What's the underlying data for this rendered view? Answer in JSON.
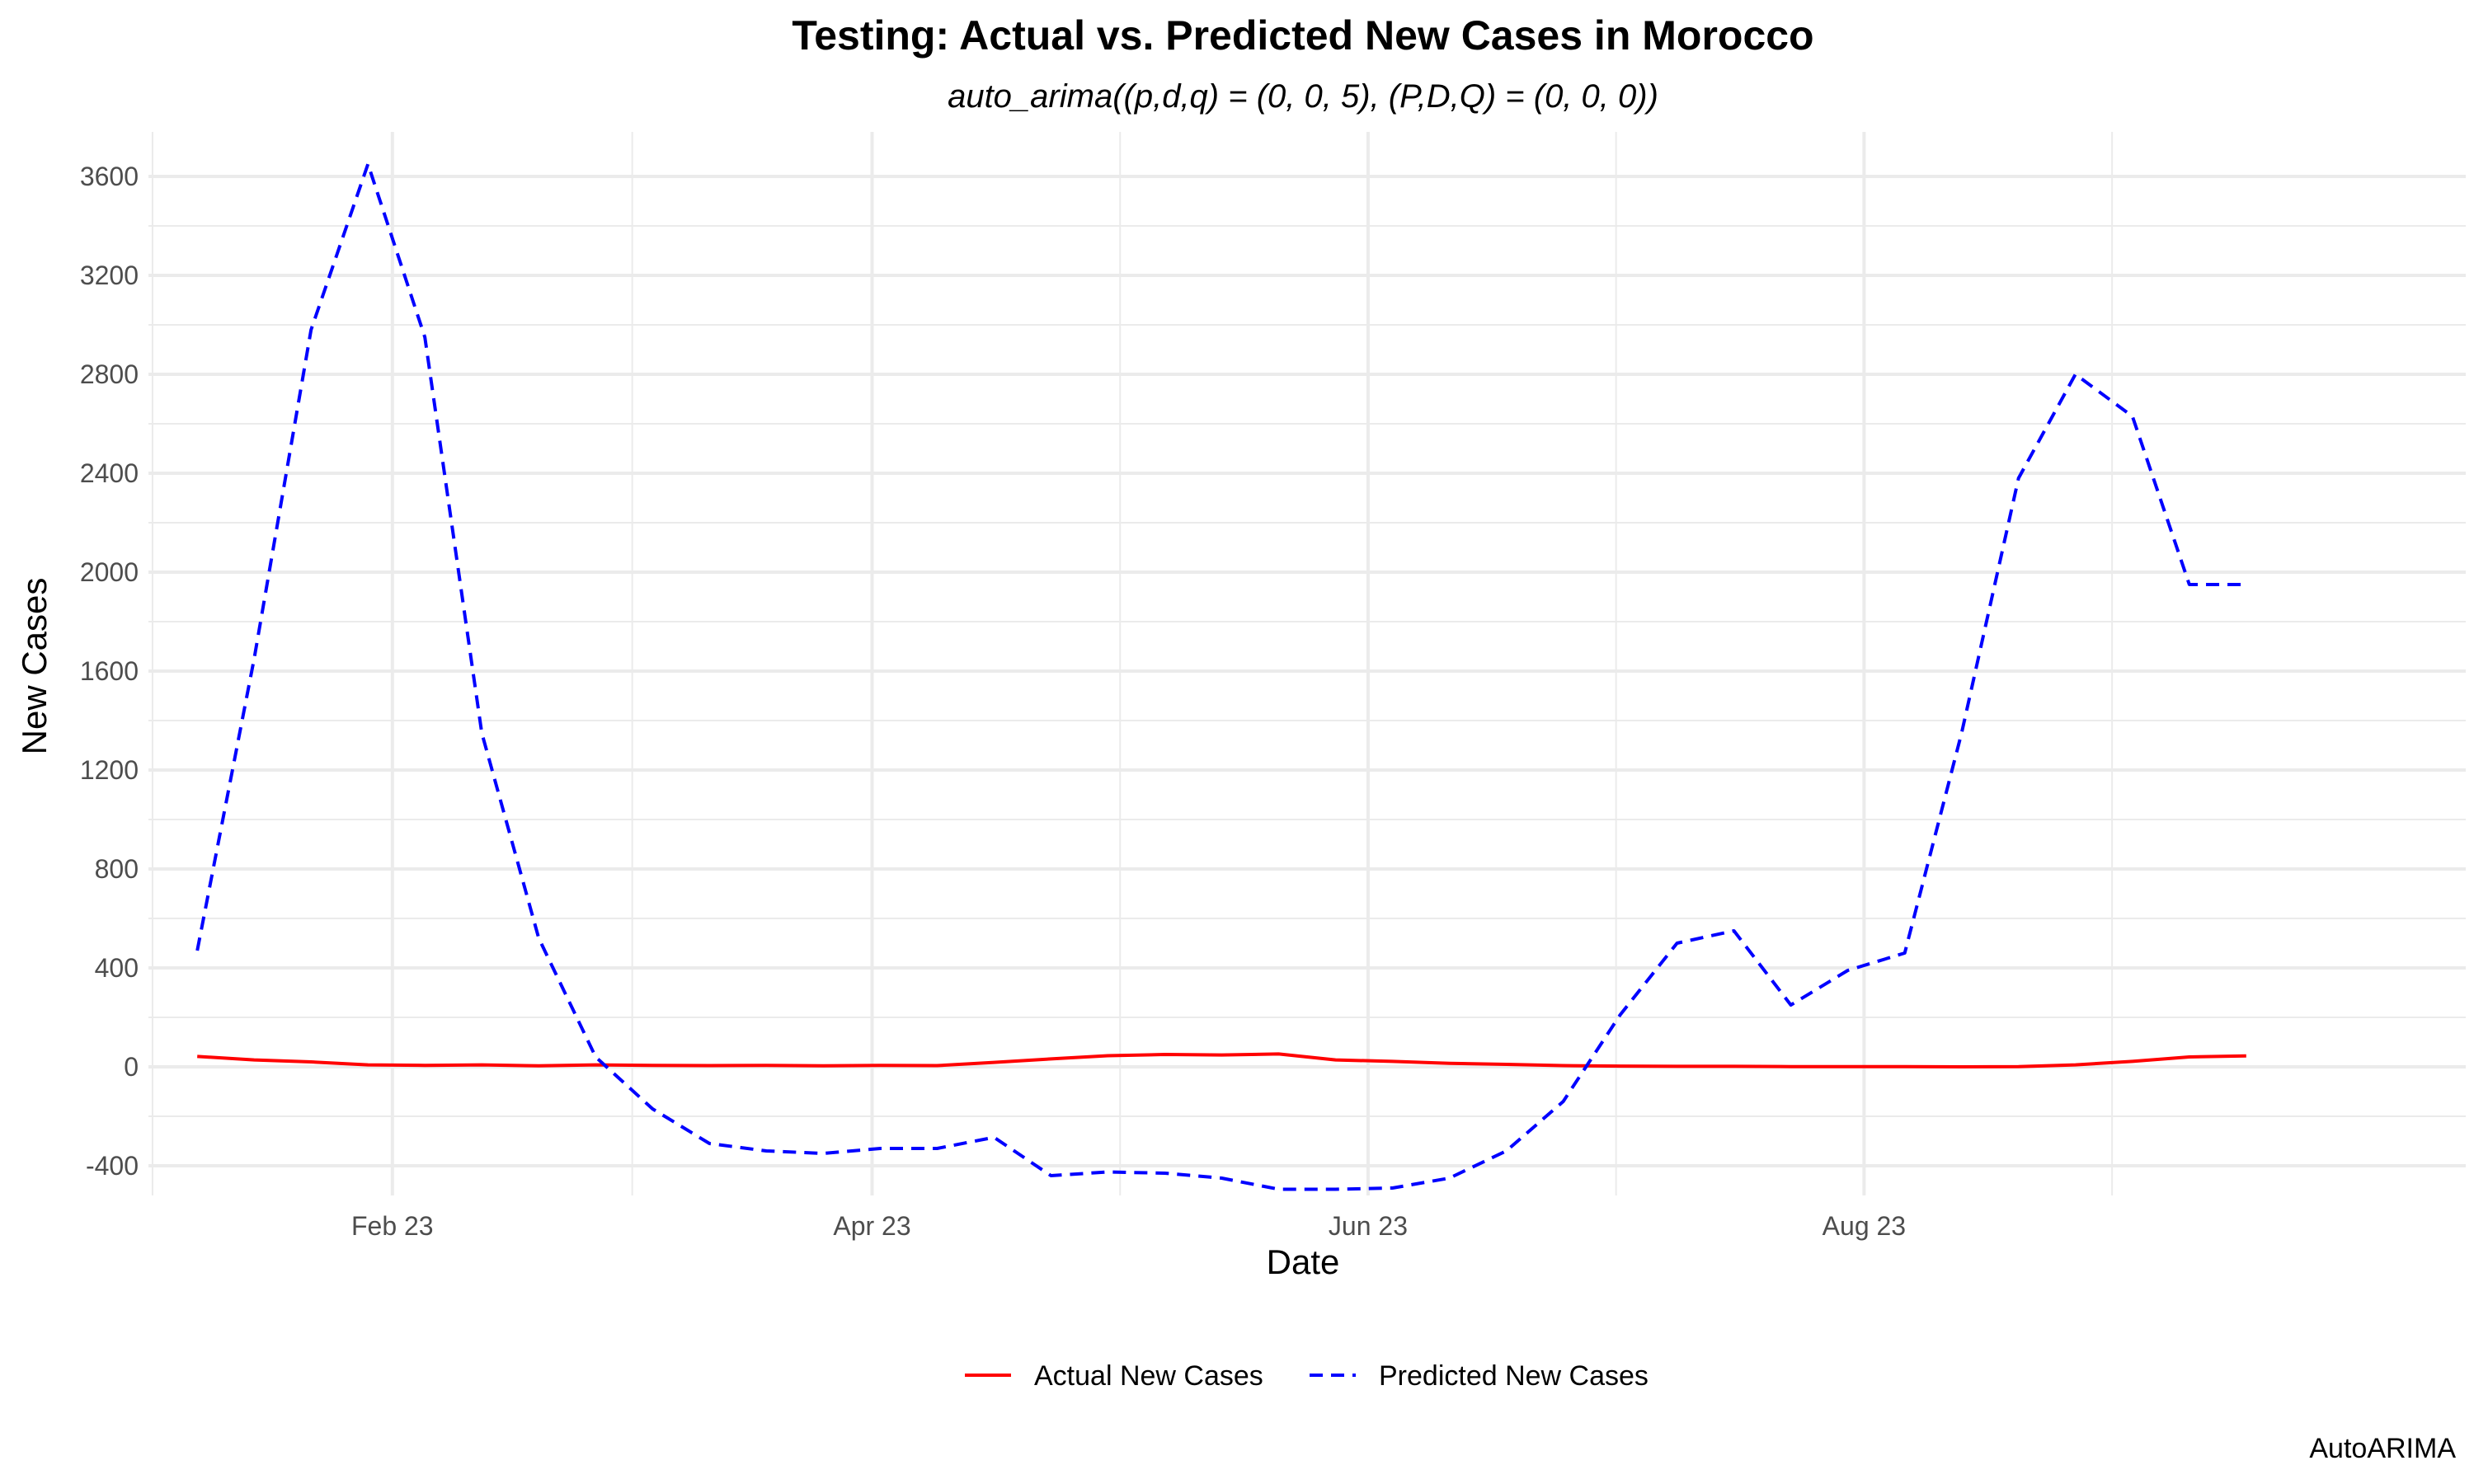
{
  "chart_data": {
    "type": "line",
    "title": "Testing: Actual vs. Predicted New Cases in Morocco",
    "subtitle": "auto_arima((p,d,q) = (0, 0, 5), (P,D,Q) = (0, 0, 0))",
    "xlabel": "Date",
    "ylabel": "New Cases",
    "caption": "AutoARIMA",
    "x_type": "date",
    "x_ticks": [
      {
        "date": "2023-02-01",
        "label": "Feb 23"
      },
      {
        "date": "2023-04-01",
        "label": "Apr 23"
      },
      {
        "date": "2023-06-01",
        "label": "Jun 23"
      },
      {
        "date": "2023-08-01",
        "label": "Aug 23"
      }
    ],
    "xlim": [
      "2023-01-02",
      "2023-10-14"
    ],
    "ylim": [
      -520,
      3780
    ],
    "y_ticks": [
      -400,
      0,
      400,
      800,
      1200,
      1600,
      2000,
      2400,
      2800,
      3200,
      3600
    ],
    "grid": true,
    "legend_position": "bottom",
    "series": [
      {
        "name": "Actual New Cases",
        "color": "#ff0000",
        "style": "solid",
        "x": [
          "2023-01-08",
          "2023-01-15",
          "2023-01-22",
          "2023-01-29",
          "2023-02-05",
          "2023-02-12",
          "2023-02-19",
          "2023-02-26",
          "2023-03-05",
          "2023-03-12",
          "2023-03-19",
          "2023-03-26",
          "2023-04-02",
          "2023-04-09",
          "2023-04-16",
          "2023-04-23",
          "2023-04-30",
          "2023-05-07",
          "2023-05-14",
          "2023-05-21",
          "2023-05-28",
          "2023-06-04",
          "2023-06-11",
          "2023-06-18",
          "2023-06-25",
          "2023-07-02",
          "2023-07-09",
          "2023-07-16",
          "2023-07-23",
          "2023-07-30",
          "2023-08-06",
          "2023-08-13",
          "2023-08-20",
          "2023-08-27",
          "2023-09-03",
          "2023-09-10",
          "2023-09-17"
        ],
        "values": [
          42,
          28,
          20,
          8,
          6,
          8,
          4,
          8,
          6,
          5,
          6,
          4,
          6,
          5,
          18,
          32,
          45,
          50,
          48,
          52,
          28,
          22,
          14,
          10,
          5,
          3,
          2,
          2,
          1,
          1,
          1,
          0,
          1,
          8,
          22,
          40,
          44
        ]
      },
      {
        "name": "Predicted New Cases",
        "color": "#0000ff",
        "style": "dashed",
        "x": [
          "2023-01-08",
          "2023-01-15",
          "2023-01-22",
          "2023-01-29",
          "2023-02-05",
          "2023-02-12",
          "2023-02-19",
          "2023-02-26",
          "2023-03-05",
          "2023-03-12",
          "2023-03-19",
          "2023-03-26",
          "2023-04-02",
          "2023-04-09",
          "2023-04-16",
          "2023-04-23",
          "2023-04-30",
          "2023-05-07",
          "2023-05-14",
          "2023-05-21",
          "2023-05-28",
          "2023-06-04",
          "2023-06-11",
          "2023-06-18",
          "2023-06-25",
          "2023-07-02",
          "2023-07-09",
          "2023-07-16",
          "2023-07-23",
          "2023-07-30",
          "2023-08-06",
          "2023-08-13",
          "2023-08-20",
          "2023-08-27",
          "2023-09-03",
          "2023-09-10",
          "2023-09-17"
        ],
        "values": [
          470,
          1650,
          2980,
          3650,
          2950,
          1350,
          520,
          40,
          -170,
          -310,
          -340,
          -350,
          -330,
          -330,
          -285,
          -440,
          -425,
          -430,
          -450,
          -495,
          -495,
          -490,
          -450,
          -340,
          -140,
          210,
          500,
          550,
          250,
          390,
          460,
          1350,
          2380,
          2800,
          2630,
          1950,
          1950
        ]
      }
    ]
  }
}
